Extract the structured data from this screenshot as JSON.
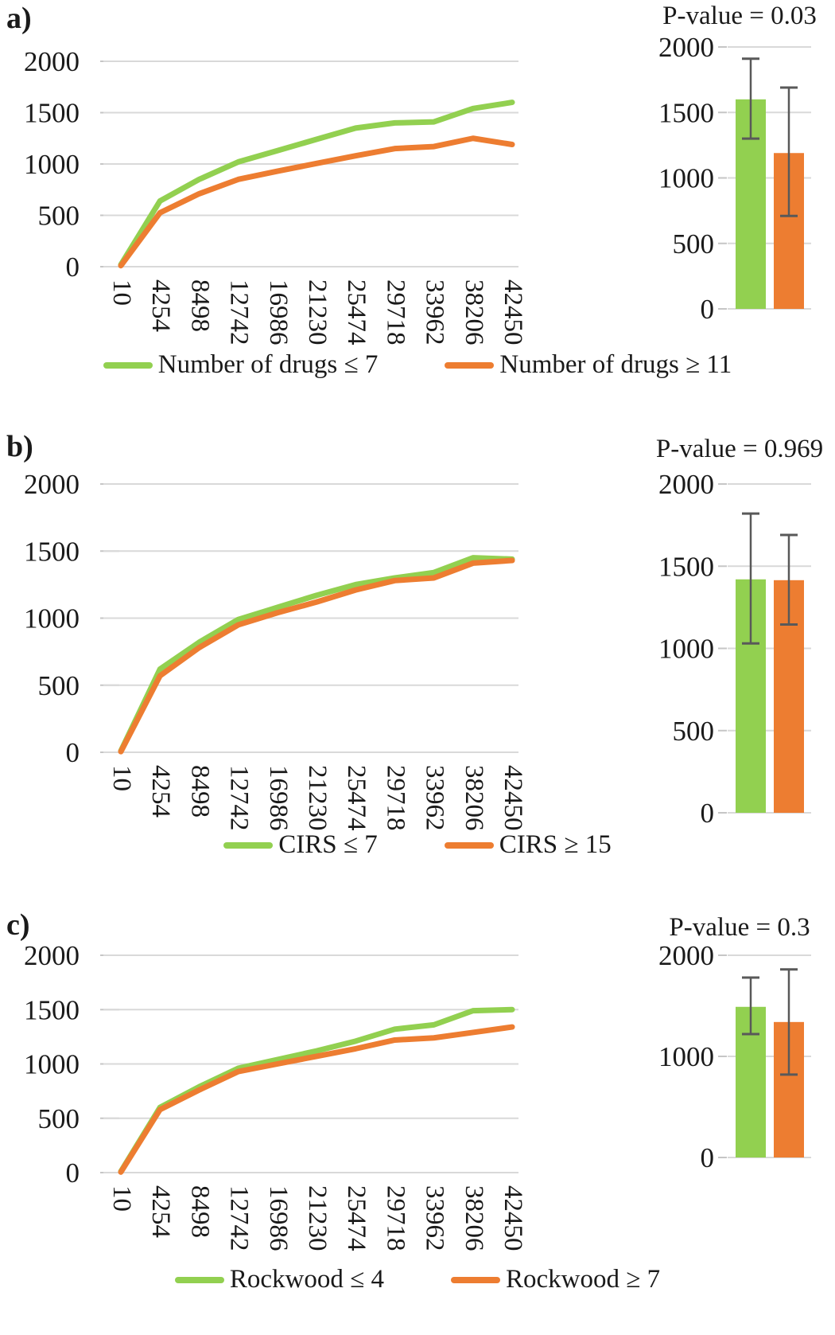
{
  "figure": {
    "background": "#ffffff"
  },
  "colors": {
    "green": "#92d050",
    "orange": "#ed7d31",
    "grid": "#d9d9d9",
    "tick": "#c6c6c6",
    "error_bar": "#595959",
    "text": "#1a1a1a"
  },
  "panels": [
    {
      "letter": "a)",
      "p_value_label": "P-value = 0.03",
      "legend": [
        {
          "label": "Number of drugs ≤ 7",
          "color_key": "green"
        },
        {
          "label": "Number of drugs ≥ 11",
          "color_key": "orange"
        }
      ]
    },
    {
      "letter": "b)",
      "p_value_label": "P-value = 0.969",
      "legend": [
        {
          "label": "CIRS ≤ 7",
          "color_key": "green"
        },
        {
          "label": "CIRS ≥ 15",
          "color_key": "orange"
        }
      ]
    },
    {
      "letter": "c)",
      "p_value_label": "P-value = 0.3",
      "legend": [
        {
          "label": "Rockwood ≤ 4",
          "color_key": "green"
        },
        {
          "label": "Rockwood ≥ 7",
          "color_key": "orange"
        }
      ]
    }
  ],
  "chart_data": [
    {
      "panel": "a",
      "line": {
        "type": "line",
        "x": [
          10,
          4254,
          8498,
          12742,
          16986,
          21230,
          25474,
          29718,
          33962,
          38206,
          42450
        ],
        "series": [
          {
            "name": "Number of drugs ≤ 7",
            "color": "#92d050",
            "values": [
              20,
              640,
              850,
              1020,
              1130,
              1240,
              1350,
              1400,
              1410,
              1540,
              1600
            ]
          },
          {
            "name": "Number of drugs ≥ 11",
            "color": "#ed7d31",
            "values": [
              10,
              525,
              710,
              850,
              930,
              1005,
              1080,
              1150,
              1170,
              1250,
              1190
            ]
          }
        ],
        "ylim": [
          0,
          2000
        ],
        "yticks": [
          0,
          500,
          1000,
          1500,
          2000
        ],
        "grid": true,
        "legend_position": "bottom"
      },
      "bar": {
        "type": "bar",
        "title": "P-value = 0.03",
        "ylim": [
          0,
          2000
        ],
        "yticks": [
          0,
          500,
          1000,
          1500,
          2000
        ],
        "bars": [
          {
            "name": "Number of drugs ≤ 7",
            "color": "#92d050",
            "value": 1600,
            "err_low": 1300,
            "err_high": 1910
          },
          {
            "name": "Number of drugs ≥ 11",
            "color": "#ed7d31",
            "value": 1190,
            "err_low": 710,
            "err_high": 1690
          }
        ]
      }
    },
    {
      "panel": "b",
      "line": {
        "type": "line",
        "x": [
          10,
          4254,
          8498,
          12742,
          16986,
          21230,
          25474,
          29718,
          33962,
          38206,
          42450
        ],
        "series": [
          {
            "name": "CIRS ≤ 7",
            "color": "#92d050",
            "values": [
              10,
              620,
              820,
              990,
              1080,
              1170,
              1250,
              1300,
              1340,
              1450,
              1440
            ]
          },
          {
            "name": "CIRS ≥ 15",
            "color": "#ed7d31",
            "values": [
              5,
              570,
              780,
              950,
              1040,
              1120,
              1210,
              1280,
              1300,
              1410,
              1430
            ]
          }
        ],
        "ylim": [
          0,
          2000
        ],
        "yticks": [
          0,
          500,
          1000,
          1500,
          2000
        ],
        "grid": true,
        "legend_position": "bottom"
      },
      "bar": {
        "type": "bar",
        "title": "P-value = 0.969",
        "ylim": [
          0,
          2000
        ],
        "yticks": [
          0,
          500,
          1000,
          1500,
          2000
        ],
        "bars": [
          {
            "name": "CIRS ≤ 7",
            "color": "#92d050",
            "value": 1420,
            "err_low": 1030,
            "err_high": 1820
          },
          {
            "name": "CIRS ≥ 15",
            "color": "#ed7d31",
            "value": 1415,
            "err_low": 1145,
            "err_high": 1690
          }
        ]
      }
    },
    {
      "panel": "c",
      "line": {
        "type": "line",
        "x": [
          10,
          4254,
          8498,
          12742,
          16986,
          21230,
          25474,
          29718,
          33962,
          38206,
          42450
        ],
        "series": [
          {
            "name": "Rockwood ≤ 4",
            "color": "#92d050",
            "values": [
              10,
              600,
              790,
              960,
              1040,
              1120,
              1210,
              1320,
              1360,
              1490,
              1500
            ]
          },
          {
            "name": "Rockwood ≥ 7",
            "color": "#ed7d31",
            "values": [
              5,
              580,
              760,
              930,
              1000,
              1070,
              1140,
              1220,
              1240,
              1290,
              1340
            ]
          }
        ],
        "ylim": [
          0,
          2000
        ],
        "yticks": [
          0,
          500,
          1000,
          1500,
          2000
        ],
        "grid": true,
        "legend_position": "bottom"
      },
      "bar": {
        "type": "bar",
        "title": "P-value = 0.3",
        "ylim": [
          0,
          2000
        ],
        "yticks": [
          0,
          1000,
          2000
        ],
        "bars": [
          {
            "name": "Rockwood ≤ 4",
            "color": "#92d050",
            "value": 1490,
            "err_low": 1220,
            "err_high": 1780
          },
          {
            "name": "Rockwood ≥ 7",
            "color": "#ed7d31",
            "value": 1340,
            "err_low": 820,
            "err_high": 1860
          }
        ]
      }
    }
  ]
}
